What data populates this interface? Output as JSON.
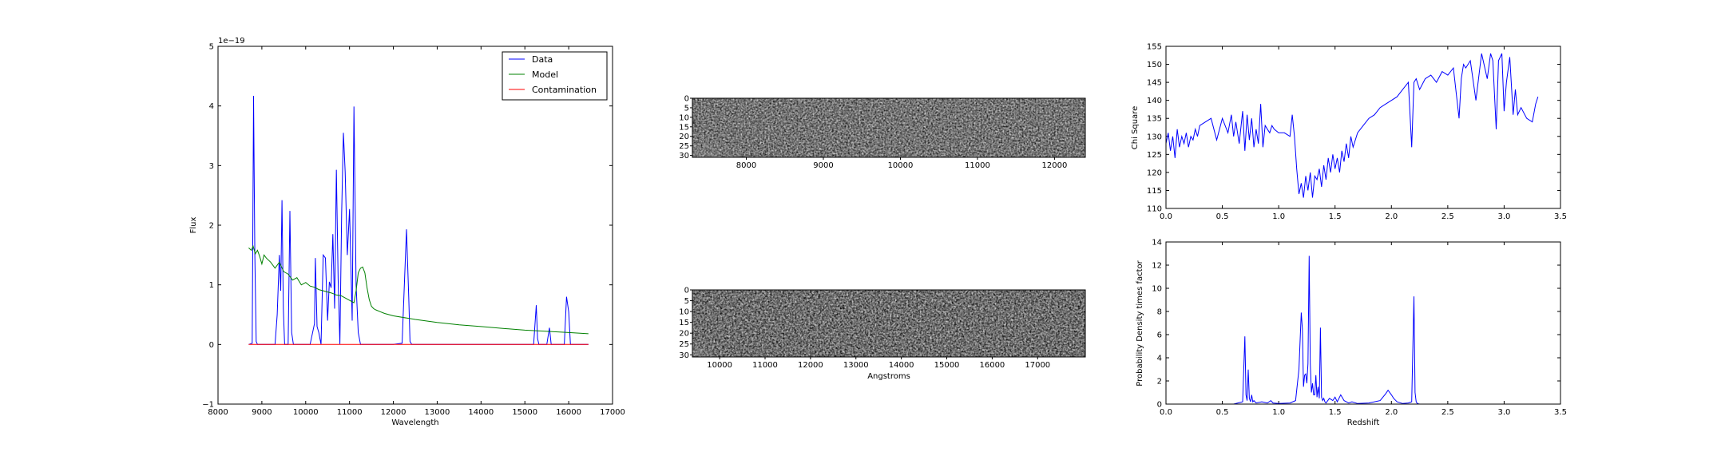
{
  "chart_data": [
    {
      "id": "spectrum",
      "type": "line",
      "xlabel": "Wavelength",
      "ylabel": "Flux",
      "offset_label": "1e−19",
      "xlim": [
        8000,
        17000
      ],
      "ylim": [
        -1,
        5
      ],
      "xticks": [
        8000,
        9000,
        10000,
        11000,
        12000,
        13000,
        14000,
        15000,
        16000,
        17000
      ],
      "yticks": [
        -1,
        0,
        1,
        2,
        3,
        4,
        5
      ],
      "legend": {
        "placement": "top-right",
        "entries": [
          "Data",
          "Model",
          "Contamination"
        ]
      },
      "series": [
        {
          "name": "Data",
          "color": "#0000ff",
          "x": [
            8700,
            8780,
            8810,
            8840,
            8870,
            8900,
            8950,
            9000,
            9100,
            9200,
            9300,
            9350,
            9400,
            9430,
            9460,
            9490,
            9520,
            9560,
            9600,
            9640,
            9680,
            9720,
            9760,
            9800,
            9900,
            10000,
            10100,
            10200,
            10220,
            10260,
            10300,
            10350,
            10400,
            10450,
            10500,
            10540,
            10580,
            10620,
            10660,
            10700,
            10740,
            10780,
            10820,
            10860,
            10900,
            10950,
            11000,
            11060,
            11100,
            11150,
            11200,
            11250,
            11300,
            11340,
            11380,
            11420,
            11450,
            11500,
            11600,
            11800,
            12000,
            12200,
            12300,
            12350,
            12380,
            12420,
            12460,
            12500,
            12700,
            13000,
            13500,
            14000,
            14500,
            15000,
            15200,
            15260,
            15290,
            15320,
            15360,
            15500,
            15560,
            15600,
            15650,
            15700,
            15800,
            15900,
            15950,
            16000,
            16040,
            16080,
            16120,
            16200,
            16300,
            16450
          ],
          "y": [
            0.0,
            0.02,
            4.17,
            1.5,
            0.05,
            0.0,
            0.0,
            0.0,
            0.0,
            0.0,
            0.0,
            0.5,
            1.5,
            0.9,
            2.42,
            0.6,
            0.0,
            0.0,
            0.0,
            2.24,
            0.2,
            0.0,
            0.0,
            0.0,
            0.0,
            0.0,
            0.0,
            0.35,
            1.45,
            0.3,
            0.2,
            0.0,
            1.5,
            1.45,
            0.4,
            1.05,
            0.95,
            1.85,
            0.6,
            2.93,
            1.1,
            0.0,
            2.2,
            3.55,
            2.9,
            1.5,
            2.27,
            0.4,
            3.99,
            1.0,
            0.2,
            0.0,
            0.0,
            0.0,
            0.0,
            0.0,
            0.0,
            0.0,
            0.0,
            0.0,
            0.0,
            0.02,
            1.93,
            0.8,
            0.05,
            0.0,
            0.0,
            0.0,
            0.0,
            0.0,
            0.0,
            0.0,
            0.0,
            0.0,
            0.0,
            0.66,
            0.1,
            0.0,
            0.0,
            0.0,
            0.28,
            0.0,
            0.0,
            0.0,
            0.0,
            0.0,
            0.8,
            0.55,
            0.0,
            0.0,
            0.0,
            0.0,
            0.0,
            0.0
          ]
        },
        {
          "name": "Model",
          "color": "#008000",
          "x": [
            8700,
            8760,
            8800,
            8850,
            8900,
            8950,
            9000,
            9050,
            9100,
            9200,
            9300,
            9400,
            9500,
            9600,
            9700,
            9800,
            9900,
            10000,
            10100,
            10200,
            10300,
            10400,
            10500,
            10600,
            10700,
            10800,
            10900,
            11000,
            11100,
            11150,
            11200,
            11250,
            11300,
            11350,
            11400,
            11450,
            11500,
            11550,
            11600,
            11700,
            11800,
            12000,
            12500,
            13000,
            13500,
            14000,
            14500,
            15000,
            15500,
            16000,
            16450
          ],
          "y": [
            1.62,
            1.58,
            1.65,
            1.52,
            1.58,
            1.48,
            1.35,
            1.5,
            1.45,
            1.38,
            1.28,
            1.38,
            1.22,
            1.18,
            1.08,
            1.12,
            1.0,
            1.04,
            0.98,
            0.96,
            0.92,
            0.9,
            0.88,
            0.86,
            0.83,
            0.82,
            0.78,
            0.74,
            0.7,
            0.9,
            1.2,
            1.28,
            1.3,
            1.2,
            0.95,
            0.75,
            0.64,
            0.6,
            0.58,
            0.55,
            0.52,
            0.48,
            0.42,
            0.37,
            0.33,
            0.3,
            0.27,
            0.24,
            0.22,
            0.2,
            0.18
          ]
        },
        {
          "name": "Contamination",
          "color": "#ff0000",
          "x": [
            8700,
            16450
          ],
          "y": [
            0.0,
            0.0
          ]
        }
      ]
    },
    {
      "id": "spectrum2d_top",
      "type": "heatmap",
      "xlim": [
        7300,
        12400
      ],
      "ylim": [
        31,
        0
      ],
      "xticks": [
        8000,
        9000,
        10000,
        11000,
        12000
      ],
      "yticks": [
        0,
        5,
        10,
        15,
        20,
        25,
        30
      ],
      "colormap": "gray"
    },
    {
      "id": "spectrum2d_bottom",
      "type": "heatmap",
      "xlabel": "Angstroms",
      "xlim": [
        9400,
        18050
      ],
      "ylim": [
        31,
        0
      ],
      "xticks": [
        10000,
        11000,
        12000,
        13000,
        14000,
        15000,
        16000,
        17000
      ],
      "yticks": [
        0,
        5,
        10,
        15,
        20,
        25,
        30
      ],
      "colormap": "gray"
    },
    {
      "id": "chisq",
      "type": "line",
      "ylabel": "Chi Square",
      "xlim": [
        0.0,
        3.5
      ],
      "ylim": [
        110,
        155
      ],
      "xticks": [
        0.0,
        0.5,
        1.0,
        1.5,
        2.0,
        2.5,
        3.0,
        3.5
      ],
      "yticks": [
        110,
        115,
        120,
        125,
        130,
        135,
        140,
        145,
        150,
        155
      ],
      "series": [
        {
          "color": "#0000ff",
          "x": [
            0.0,
            0.02,
            0.04,
            0.06,
            0.08,
            0.1,
            0.12,
            0.14,
            0.16,
            0.18,
            0.2,
            0.22,
            0.24,
            0.26,
            0.28,
            0.3,
            0.35,
            0.4,
            0.45,
            0.5,
            0.55,
            0.58,
            0.6,
            0.62,
            0.65,
            0.68,
            0.7,
            0.72,
            0.74,
            0.76,
            0.78,
            0.8,
            0.82,
            0.84,
            0.86,
            0.88,
            0.9,
            0.92,
            0.94,
            0.96,
            1.0,
            1.05,
            1.1,
            1.12,
            1.14,
            1.16,
            1.18,
            1.2,
            1.22,
            1.24,
            1.26,
            1.28,
            1.3,
            1.32,
            1.34,
            1.36,
            1.38,
            1.4,
            1.42,
            1.44,
            1.46,
            1.48,
            1.5,
            1.52,
            1.54,
            1.56,
            1.58,
            1.6,
            1.62,
            1.64,
            1.66,
            1.7,
            1.75,
            1.8,
            1.85,
            1.9,
            1.95,
            2.0,
            2.05,
            2.1,
            2.15,
            2.18,
            2.2,
            2.22,
            2.25,
            2.3,
            2.35,
            2.4,
            2.45,
            2.5,
            2.55,
            2.6,
            2.62,
            2.64,
            2.66,
            2.7,
            2.75,
            2.8,
            2.85,
            2.88,
            2.9,
            2.93,
            2.95,
            2.98,
            3.0,
            3.02,
            3.05,
            3.08,
            3.1,
            3.12,
            3.15,
            3.2,
            3.25,
            3.28,
            3.3
          ],
          "y": [
            128,
            131,
            126,
            130,
            124,
            132,
            127,
            130,
            128,
            131,
            127,
            130,
            129,
            132,
            130,
            133,
            134,
            135,
            129,
            135,
            131,
            136,
            130,
            134,
            128,
            137,
            126,
            136,
            129,
            135,
            127,
            132,
            128,
            139,
            127,
            133,
            132,
            131,
            133,
            132,
            131,
            131,
            130,
            136,
            130,
            121,
            114,
            117,
            113,
            119,
            115,
            120,
            113,
            119,
            118,
            121,
            116,
            122,
            118,
            124,
            120,
            125,
            121,
            124,
            120,
            126,
            123,
            128,
            124,
            130,
            127,
            131,
            133,
            135,
            136,
            138,
            139,
            140,
            141,
            143,
            145,
            127,
            145,
            146,
            143,
            146,
            147,
            145,
            148,
            147,
            149,
            135,
            146,
            150,
            149,
            151,
            140,
            153,
            146,
            153,
            151,
            132,
            151,
            153,
            137,
            145,
            152,
            136,
            143,
            136,
            138,
            135,
            134,
            139,
            141
          ]
        }
      ]
    },
    {
      "id": "pdf",
      "type": "line",
      "xlabel": "Redshift",
      "ylabel": "Probability Density times factor",
      "xlim": [
        0.0,
        3.5
      ],
      "ylim": [
        0,
        14
      ],
      "xticks": [
        0.0,
        0.5,
        1.0,
        1.5,
        2.0,
        2.5,
        3.0,
        3.5
      ],
      "yticks": [
        0,
        2,
        4,
        6,
        8,
        10,
        12,
        14
      ],
      "series": [
        {
          "color": "#0000ff",
          "x": [
            0.0,
            0.6,
            0.68,
            0.7,
            0.71,
            0.72,
            0.73,
            0.74,
            0.75,
            0.76,
            0.77,
            0.78,
            0.8,
            0.85,
            0.9,
            0.93,
            0.95,
            1.0,
            1.1,
            1.15,
            1.18,
            1.2,
            1.21,
            1.22,
            1.23,
            1.24,
            1.25,
            1.26,
            1.27,
            1.28,
            1.29,
            1.3,
            1.31,
            1.32,
            1.33,
            1.34,
            1.35,
            1.36,
            1.37,
            1.38,
            1.39,
            1.4,
            1.41,
            1.42,
            1.45,
            1.48,
            1.5,
            1.52,
            1.55,
            1.58,
            1.6,
            1.62,
            1.65,
            1.7,
            1.8,
            1.9,
            1.95,
            1.97,
            2.0,
            2.02,
            2.05,
            2.1,
            2.15,
            2.18,
            2.2,
            2.21,
            2.22,
            2.23,
            2.25,
            2.3,
            2.5,
            3.3
          ],
          "y": [
            0.0,
            0.0,
            0.2,
            5.85,
            0.8,
            0.3,
            2.98,
            0.5,
            0.2,
            0.8,
            0.2,
            0.3,
            0.1,
            0.2,
            0.1,
            0.3,
            0.1,
            0.05,
            0.1,
            0.3,
            3.0,
            7.9,
            6.5,
            1.5,
            2.5,
            2.6,
            1.8,
            3.5,
            12.8,
            3.5,
            1.0,
            1.8,
            0.8,
            0.8,
            2.5,
            0.6,
            1.5,
            0.5,
            6.6,
            0.6,
            0.3,
            0.5,
            0.2,
            0.1,
            0.5,
            0.3,
            0.6,
            0.2,
            0.8,
            0.3,
            0.2,
            0.1,
            0.2,
            0.05,
            0.1,
            0.3,
            0.9,
            1.2,
            0.8,
            0.5,
            0.2,
            0.05,
            0.1,
            0.2,
            9.3,
            1.0,
            0.2,
            0.05,
            0.0,
            0.0,
            0.0,
            0.0
          ]
        }
      ]
    }
  ]
}
